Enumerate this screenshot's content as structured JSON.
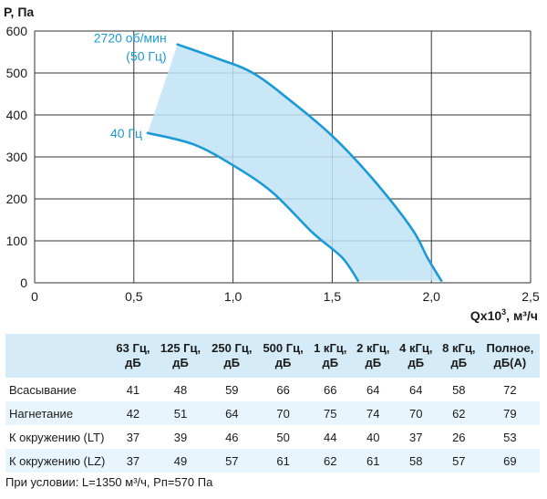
{
  "chart_data": {
    "type": "line",
    "ylabel": "P, Па",
    "xlabel_main": "Qx10",
    "xlabel_sup": "3",
    "xlabel_tail": ", м³/ч",
    "xlim": [
      0,
      2.5
    ],
    "ylim": [
      0,
      600
    ],
    "x_ticks": [
      "0",
      "0,5",
      "1,0",
      "1,5",
      "2,0",
      "2,5"
    ],
    "y_ticks": [
      "0",
      "100",
      "200",
      "300",
      "400",
      "500",
      "600"
    ],
    "grid": true,
    "fill_color": "#bfe3f6",
    "line_color": "#1a9ad6",
    "series": [
      {
        "label_lines": [
          "2720 об/мин",
          "(50 Гц)"
        ],
        "points": [
          [
            0.72,
            568
          ],
          [
            0.9,
            538
          ],
          [
            1.1,
            500
          ],
          [
            1.3,
            430
          ],
          [
            1.5,
            350
          ],
          [
            1.7,
            250
          ],
          [
            1.9,
            130
          ],
          [
            1.98,
            60
          ],
          [
            2.05,
            5
          ]
        ]
      },
      {
        "label_lines": [
          "40 Гц"
        ],
        "points": [
          [
            0.57,
            357
          ],
          [
            0.8,
            330
          ],
          [
            1.0,
            280
          ],
          [
            1.2,
            215
          ],
          [
            1.4,
            120
          ],
          [
            1.55,
            60
          ],
          [
            1.63,
            5
          ]
        ]
      }
    ]
  },
  "table": {
    "headers": [
      [
        "63 Гц,",
        "дБ"
      ],
      [
        "125 Гц,",
        "дБ"
      ],
      [
        "250 Гц,",
        "дБ"
      ],
      [
        "500 Гц,",
        "дБ"
      ],
      [
        "1 кГц,",
        "дБ"
      ],
      [
        "2 кГц,",
        "дБ"
      ],
      [
        "4 кГц,",
        "дБ"
      ],
      [
        "8 кГц,",
        "дБ"
      ],
      [
        "Полное,",
        "дБ(А)"
      ]
    ],
    "rows": [
      {
        "name": "Всасывание",
        "values": [
          "41",
          "48",
          "59",
          "66",
          "66",
          "64",
          "64",
          "58",
          "72"
        ]
      },
      {
        "name": "Нагнетание",
        "values": [
          "42",
          "51",
          "64",
          "70",
          "75",
          "74",
          "70",
          "62",
          "79"
        ]
      },
      {
        "name": "К окружению (LT)",
        "values": [
          "37",
          "39",
          "46",
          "50",
          "44",
          "40",
          "37",
          "26",
          "53"
        ]
      },
      {
        "name": "К окружению (LZ)",
        "values": [
          "37",
          "49",
          "57",
          "61",
          "62",
          "61",
          "58",
          "57",
          "69"
        ]
      }
    ]
  },
  "footnote": "При условии: L=1350 м³/ч, Pп=570 Па"
}
